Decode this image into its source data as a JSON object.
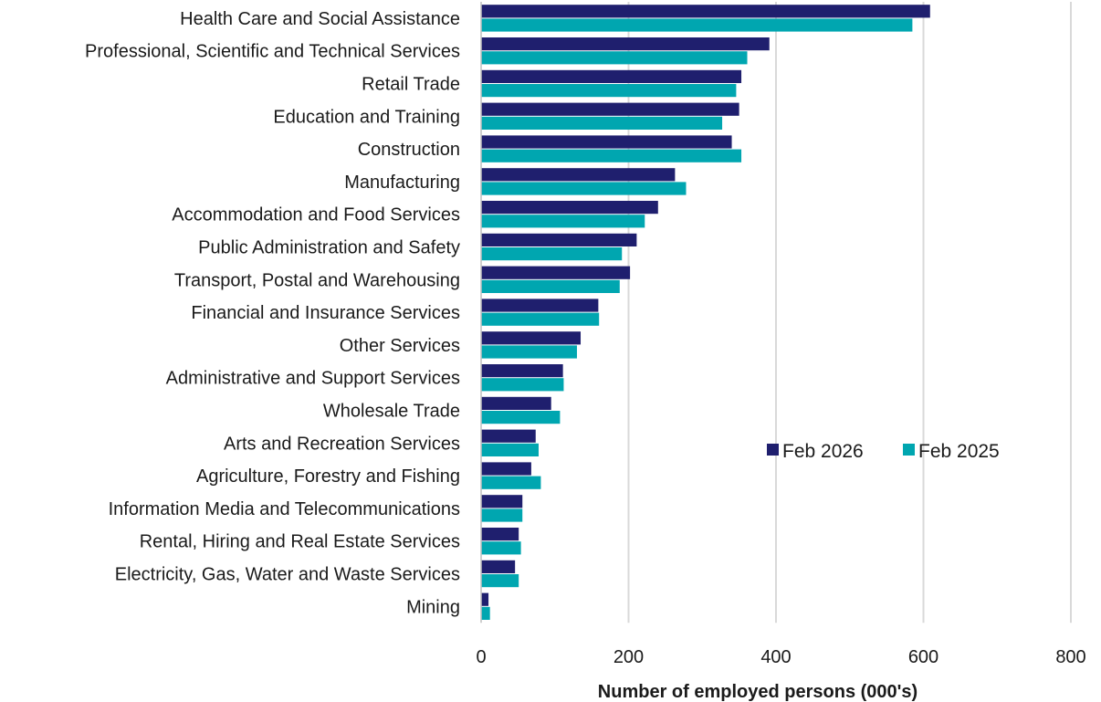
{
  "chart_data": {
    "type": "bar",
    "orientation": "horizontal",
    "categories": [
      "Health Care and Social Assistance",
      "Professional, Scientific and Technical Services",
      "Retail Trade",
      "Education and Training",
      "Construction",
      "Manufacturing",
      "Accommodation and Food Services",
      "Public Administration and Safety",
      "Transport, Postal and Warehousing",
      "Financial and Insurance Services",
      "Other Services",
      "Administrative and Support Services",
      "Wholesale Trade",
      "Arts and Recreation Services",
      "Agriculture, Forestry and Fishing",
      "Information Media and Telecommunications",
      "Rental, Hiring and Real Estate Services",
      "Electricity, Gas, Water and Waste Services",
      "Mining"
    ],
    "series": [
      {
        "name": "Feb 2026",
        "color": "#1f1f6e",
        "values": [
          609,
          391,
          353,
          350,
          340,
          263,
          240,
          211,
          202,
          159,
          135,
          111,
          95,
          74,
          68,
          56,
          51,
          46,
          10
        ]
      },
      {
        "name": "Feb 2025",
        "color": "#00a6b0",
        "values": [
          585,
          361,
          346,
          327,
          353,
          278,
          222,
          191,
          188,
          160,
          130,
          112,
          107,
          78,
          81,
          56,
          54,
          51,
          12
        ]
      }
    ],
    "title": "",
    "xlabel": "Number of employed persons (000's)",
    "ylabel": "",
    "xlim": [
      0,
      800
    ],
    "xticks": [
      0,
      200,
      400,
      600,
      800
    ],
    "grid": "vertical",
    "legend_position": "right-middle"
  }
}
